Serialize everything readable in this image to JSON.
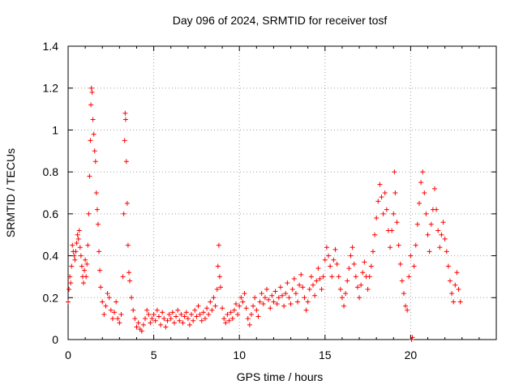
{
  "chart_data": {
    "type": "scatter",
    "title": "Day 096 of 2024, SRMTID for receiver tosf",
    "xlabel": "GPS time / hours",
    "ylabel": "SRMTID / TECUs",
    "xlim": [
      0,
      25
    ],
    "ylim": [
      0,
      1.4
    ],
    "xticks": [
      0,
      5,
      10,
      15,
      20
    ],
    "yticks": [
      0,
      0.2,
      0.4,
      0.6,
      0.8,
      1,
      1.2,
      1.4
    ],
    "ytick_labels": [
      "0",
      "0.2",
      "0.4",
      "0.6",
      "0.8",
      "1",
      "1.2",
      "1.4"
    ],
    "grid": true,
    "marker": "+",
    "series": [
      {
        "name": "SRMTID",
        "color": "#ff0000",
        "points": [
          [
            0.0,
            0.18
          ],
          [
            0.05,
            0.24
          ],
          [
            0.1,
            0.3
          ],
          [
            0.15,
            0.27
          ],
          [
            0.2,
            0.35
          ],
          [
            0.25,
            0.45
          ],
          [
            0.3,
            0.42
          ],
          [
            0.35,
            0.4
          ],
          [
            0.4,
            0.38
          ],
          [
            0.45,
            0.42
          ],
          [
            0.5,
            0.46
          ],
          [
            0.55,
            0.5
          ],
          [
            0.6,
            0.48
          ],
          [
            0.65,
            0.52
          ],
          [
            0.7,
            0.44
          ],
          [
            0.75,
            0.4
          ],
          [
            0.8,
            0.35
          ],
          [
            0.85,
            0.3
          ],
          [
            0.9,
            0.27
          ],
          [
            0.95,
            0.33
          ],
          [
            1.0,
            0.38
          ],
          [
            1.05,
            0.3
          ],
          [
            1.1,
            0.36
          ],
          [
            1.15,
            0.45
          ],
          [
            1.2,
            0.6
          ],
          [
            1.25,
            0.78
          ],
          [
            1.3,
            0.95
          ],
          [
            1.33,
            1.12
          ],
          [
            1.36,
            1.2
          ],
          [
            1.4,
            1.18
          ],
          [
            1.45,
            1.05
          ],
          [
            1.5,
            0.98
          ],
          [
            1.55,
            0.9
          ],
          [
            1.6,
            0.85
          ],
          [
            1.65,
            0.7
          ],
          [
            1.7,
            0.62
          ],
          [
            1.75,
            0.55
          ],
          [
            1.8,
            0.42
          ],
          [
            1.85,
            0.33
          ],
          [
            1.9,
            0.25
          ],
          [
            2.0,
            0.18
          ],
          [
            2.1,
            0.12
          ],
          [
            2.2,
            0.16
          ],
          [
            2.3,
            0.22
          ],
          [
            2.4,
            0.2
          ],
          [
            2.5,
            0.14
          ],
          [
            2.6,
            0.1
          ],
          [
            2.7,
            0.13
          ],
          [
            2.8,
            0.18
          ],
          [
            2.9,
            0.1
          ],
          [
            3.0,
            0.08
          ],
          [
            3.1,
            0.12
          ],
          [
            3.2,
            0.3
          ],
          [
            3.25,
            0.6
          ],
          [
            3.3,
            0.95
          ],
          [
            3.33,
            1.08
          ],
          [
            3.36,
            1.05
          ],
          [
            3.4,
            0.85
          ],
          [
            3.45,
            0.65
          ],
          [
            3.5,
            0.45
          ],
          [
            3.55,
            0.32
          ],
          [
            3.6,
            0.28
          ],
          [
            3.7,
            0.2
          ],
          [
            3.8,
            0.14
          ],
          [
            3.9,
            0.1
          ],
          [
            4.0,
            0.06
          ],
          [
            4.1,
            0.08
          ],
          [
            4.2,
            0.05
          ],
          [
            4.3,
            0.04
          ],
          [
            4.4,
            0.07
          ],
          [
            4.5,
            0.1
          ],
          [
            4.6,
            0.14
          ],
          [
            4.7,
            0.12
          ],
          [
            4.8,
            0.08
          ],
          [
            4.9,
            0.1
          ],
          [
            5.0,
            0.12
          ],
          [
            5.1,
            0.09
          ],
          [
            5.2,
            0.14
          ],
          [
            5.3,
            0.11
          ],
          [
            5.4,
            0.07
          ],
          [
            5.5,
            0.13
          ],
          [
            5.6,
            0.1
          ],
          [
            5.7,
            0.06
          ],
          [
            5.8,
            0.09
          ],
          [
            5.9,
            0.12
          ],
          [
            6.0,
            0.1
          ],
          [
            6.1,
            0.13
          ],
          [
            6.2,
            0.08
          ],
          [
            6.3,
            0.11
          ],
          [
            6.4,
            0.14
          ],
          [
            6.5,
            0.09
          ],
          [
            6.6,
            0.12
          ],
          [
            6.7,
            0.08
          ],
          [
            6.8,
            0.11
          ],
          [
            6.9,
            0.13
          ],
          [
            7.0,
            0.1
          ],
          [
            7.1,
            0.07
          ],
          [
            7.2,
            0.12
          ],
          [
            7.3,
            0.09
          ],
          [
            7.4,
            0.14
          ],
          [
            7.5,
            0.11
          ],
          [
            7.6,
            0.16
          ],
          [
            7.7,
            0.12
          ],
          [
            7.8,
            0.09
          ],
          [
            7.9,
            0.13
          ],
          [
            8.0,
            0.1
          ],
          [
            8.1,
            0.15
          ],
          [
            8.2,
            0.12
          ],
          [
            8.3,
            0.18
          ],
          [
            8.4,
            0.14
          ],
          [
            8.5,
            0.2
          ],
          [
            8.6,
            0.16
          ],
          [
            8.7,
            0.24
          ],
          [
            8.75,
            0.35
          ],
          [
            8.8,
            0.45
          ],
          [
            8.85,
            0.3
          ],
          [
            8.9,
            0.25
          ],
          [
            9.0,
            0.15
          ],
          [
            9.1,
            0.1
          ],
          [
            9.2,
            0.08
          ],
          [
            9.3,
            0.12
          ],
          [
            9.4,
            0.09
          ],
          [
            9.5,
            0.13
          ],
          [
            9.6,
            0.1
          ],
          [
            9.7,
            0.14
          ],
          [
            9.8,
            0.17
          ],
          [
            9.9,
            0.12
          ],
          [
            10.0,
            0.16
          ],
          [
            10.1,
            0.2
          ],
          [
            10.2,
            0.18
          ],
          [
            10.3,
            0.22
          ],
          [
            10.4,
            0.15
          ],
          [
            10.5,
            0.1
          ],
          [
            10.6,
            0.07
          ],
          [
            10.7,
            0.12
          ],
          [
            10.8,
            0.16
          ],
          [
            10.9,
            0.2
          ],
          [
            11.0,
            0.14
          ],
          [
            11.1,
            0.11
          ],
          [
            11.2,
            0.18
          ],
          [
            11.3,
            0.22
          ],
          [
            11.4,
            0.17
          ],
          [
            11.5,
            0.2
          ],
          [
            11.6,
            0.24
          ],
          [
            11.7,
            0.19
          ],
          [
            11.8,
            0.15
          ],
          [
            11.9,
            0.21
          ],
          [
            12.0,
            0.18
          ],
          [
            12.1,
            0.23
          ],
          [
            12.2,
            0.17
          ],
          [
            12.3,
            0.2
          ],
          [
            12.4,
            0.25
          ],
          [
            12.5,
            0.21
          ],
          [
            12.6,
            0.16
          ],
          [
            12.7,
            0.22
          ],
          [
            12.8,
            0.27
          ],
          [
            12.9,
            0.2
          ],
          [
            13.0,
            0.17
          ],
          [
            13.1,
            0.24
          ],
          [
            13.2,
            0.29
          ],
          [
            13.3,
            0.22
          ],
          [
            13.4,
            0.18
          ],
          [
            13.5,
            0.26
          ],
          [
            13.6,
            0.31
          ],
          [
            13.7,
            0.25
          ],
          [
            13.8,
            0.2
          ],
          [
            13.9,
            0.14
          ],
          [
            14.0,
            0.18
          ],
          [
            14.1,
            0.24
          ],
          [
            14.2,
            0.3
          ],
          [
            14.3,
            0.26
          ],
          [
            14.4,
            0.21
          ],
          [
            14.5,
            0.28
          ],
          [
            14.6,
            0.34
          ],
          [
            14.7,
            0.29
          ],
          [
            14.8,
            0.24
          ],
          [
            14.9,
            0.3
          ],
          [
            15.0,
            0.38
          ],
          [
            15.1,
            0.44
          ],
          [
            15.2,
            0.4
          ],
          [
            15.3,
            0.35
          ],
          [
            15.4,
            0.3
          ],
          [
            15.5,
            0.38
          ],
          [
            15.6,
            0.43
          ],
          [
            15.7,
            0.36
          ],
          [
            15.8,
            0.3
          ],
          [
            15.9,
            0.24
          ],
          [
            16.0,
            0.2
          ],
          [
            16.1,
            0.16
          ],
          [
            16.2,
            0.22
          ],
          [
            16.3,
            0.28
          ],
          [
            16.4,
            0.34
          ],
          [
            16.5,
            0.4
          ],
          [
            16.6,
            0.44
          ],
          [
            16.7,
            0.36
          ],
          [
            16.8,
            0.3
          ],
          [
            16.9,
            0.25
          ],
          [
            17.0,
            0.2
          ],
          [
            17.1,
            0.26
          ],
          [
            17.2,
            0.32
          ],
          [
            17.3,
            0.37
          ],
          [
            17.4,
            0.3
          ],
          [
            17.5,
            0.24
          ],
          [
            17.6,
            0.3
          ],
          [
            17.7,
            0.35
          ],
          [
            17.8,
            0.42
          ],
          [
            17.9,
            0.5
          ],
          [
            18.0,
            0.58
          ],
          [
            18.1,
            0.66
          ],
          [
            18.2,
            0.74
          ],
          [
            18.3,
            0.68
          ],
          [
            18.4,
            0.6
          ],
          [
            18.5,
            0.7
          ],
          [
            18.6,
            0.62
          ],
          [
            18.7,
            0.52
          ],
          [
            18.8,
            0.44
          ],
          [
            18.9,
            0.52
          ],
          [
            19.0,
            0.6
          ],
          [
            19.05,
            0.8
          ],
          [
            19.1,
            0.7
          ],
          [
            19.2,
            0.56
          ],
          [
            19.3,
            0.45
          ],
          [
            19.4,
            0.36
          ],
          [
            19.5,
            0.28
          ],
          [
            19.6,
            0.22
          ],
          [
            19.7,
            0.16
          ],
          [
            19.8,
            0.14
          ],
          [
            19.9,
            0.3
          ],
          [
            20.0,
            0.4
          ],
          [
            20.05,
            0.0
          ],
          [
            20.1,
            0.01
          ],
          [
            20.2,
            0.35
          ],
          [
            20.3,
            0.45
          ],
          [
            20.4,
            0.55
          ],
          [
            20.5,
            0.65
          ],
          [
            20.6,
            0.75
          ],
          [
            20.7,
            0.8
          ],
          [
            20.8,
            0.7
          ],
          [
            20.9,
            0.6
          ],
          [
            21.0,
            0.5
          ],
          [
            21.1,
            0.42
          ],
          [
            21.2,
            0.55
          ],
          [
            21.3,
            0.62
          ],
          [
            21.4,
            0.72
          ],
          [
            21.5,
            0.62
          ],
          [
            21.6,
            0.52
          ],
          [
            21.7,
            0.44
          ],
          [
            21.8,
            0.5
          ],
          [
            21.9,
            0.56
          ],
          [
            22.0,
            0.48
          ],
          [
            22.1,
            0.42
          ],
          [
            22.2,
            0.35
          ],
          [
            22.3,
            0.28
          ],
          [
            22.4,
            0.22
          ],
          [
            22.5,
            0.18
          ],
          [
            22.6,
            0.26
          ],
          [
            22.7,
            0.32
          ],
          [
            22.8,
            0.24
          ],
          [
            22.9,
            0.18
          ]
        ]
      }
    ]
  }
}
